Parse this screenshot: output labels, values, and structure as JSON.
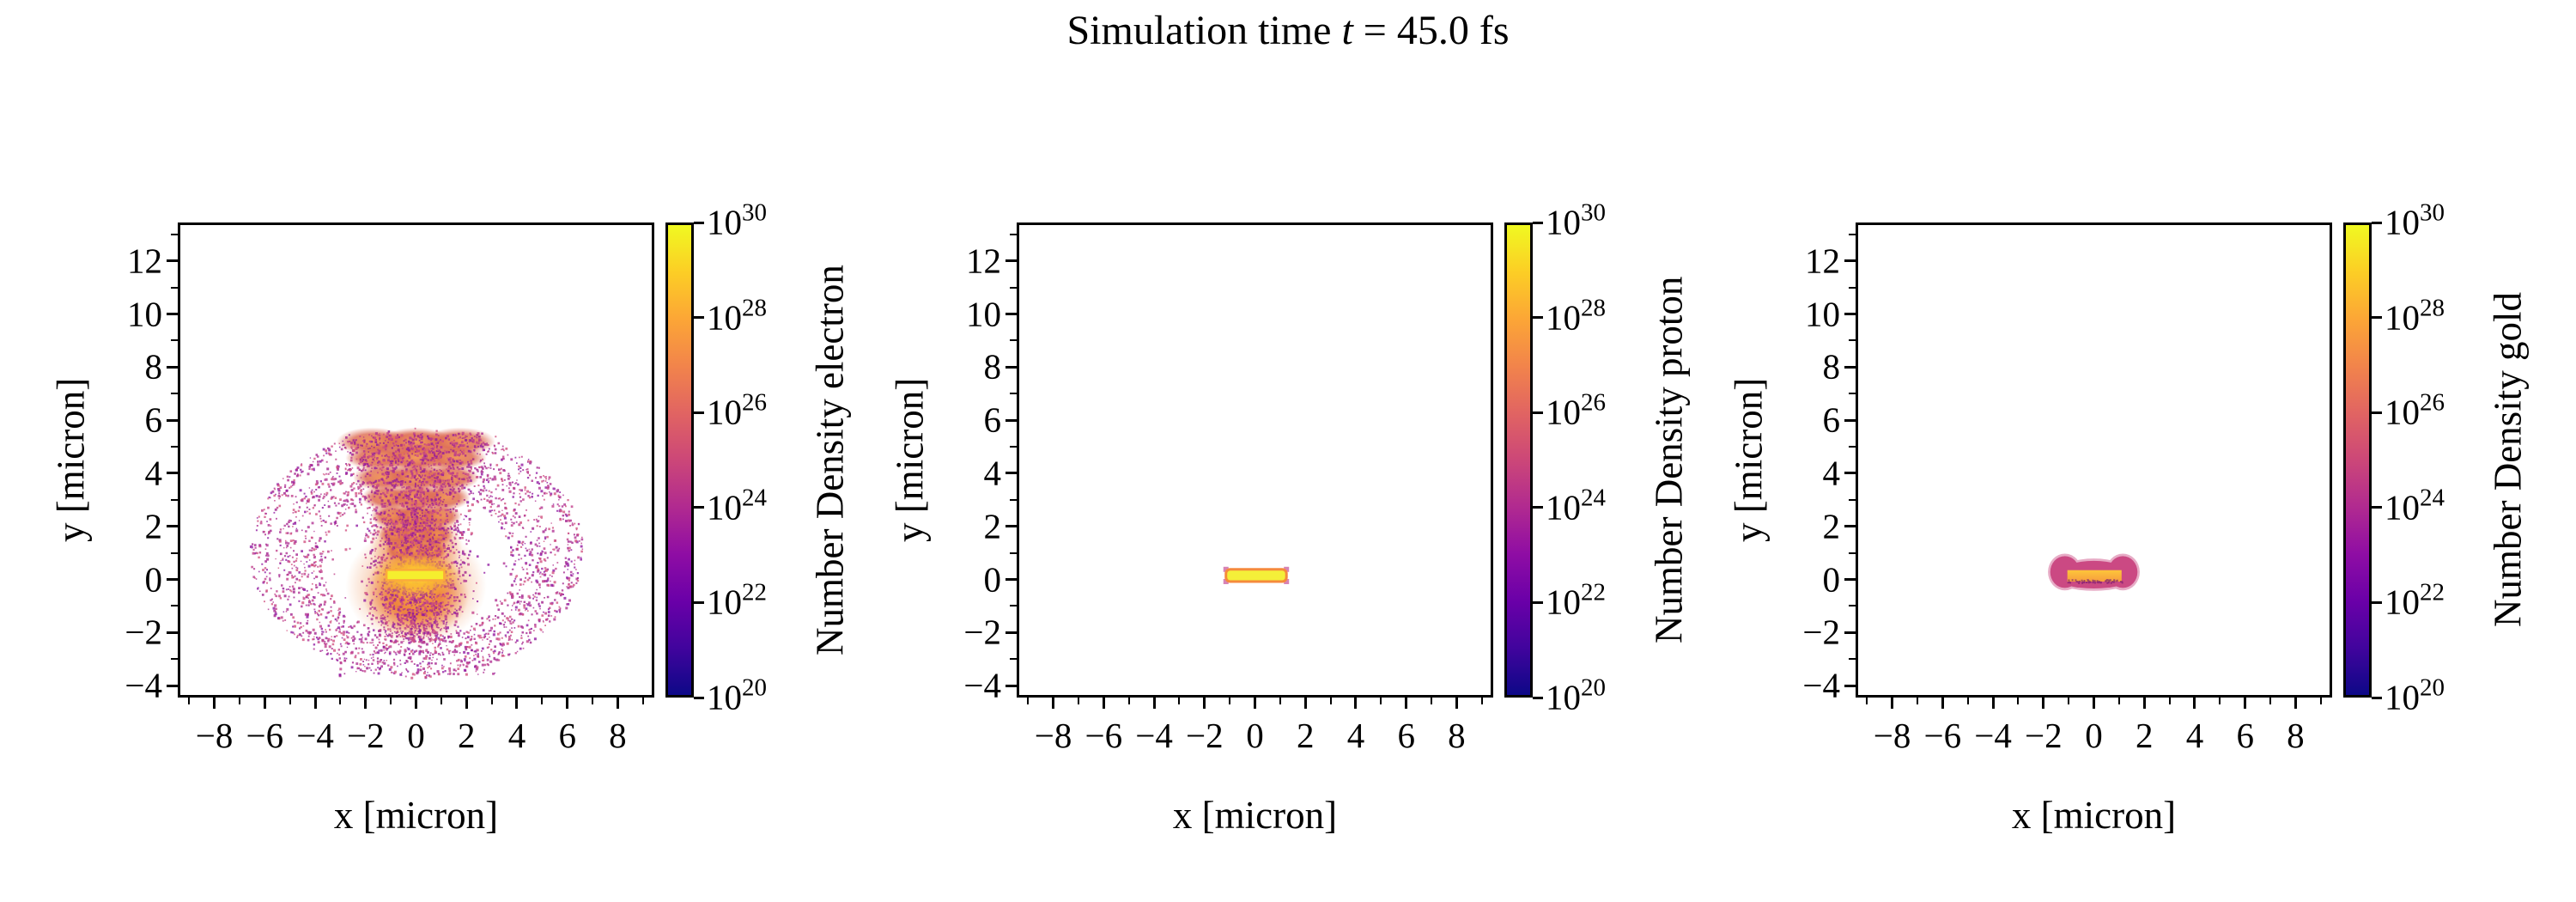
{
  "figure": {
    "title": {
      "prefix": "Simulation time ",
      "variable": "t",
      "suffix": " = 45.0 fs"
    },
    "background": "#ffffff"
  },
  "chart_data": [
    {
      "type": "heatmap",
      "species": "electron",
      "xlabel": "x [micron]",
      "ylabel": "y [micron]",
      "colorbar_label": "Number Density electron",
      "xlim": [
        -9.45,
        9.45
      ],
      "ylim": [
        -4.45,
        13.45
      ],
      "xticks": [
        -8,
        -6,
        -4,
        -2,
        0,
        2,
        4,
        6,
        8
      ],
      "xtick_labels": [
        "−8",
        "−6",
        "−4",
        "−2",
        "0",
        "2",
        "4",
        "6",
        "8"
      ],
      "yticks": [
        -4,
        -2,
        0,
        2,
        4,
        6,
        8,
        10,
        12
      ],
      "ytick_labels": [
        "−4",
        "−2",
        "0",
        "2",
        "4",
        "6",
        "8",
        "10",
        "12"
      ],
      "minor_tick_step": 1,
      "grid": false,
      "colorbar": {
        "scale": "log",
        "range_exponents": [
          20,
          30
        ],
        "tick_exponents": [
          30,
          28,
          26,
          24,
          22,
          20
        ],
        "tick_label_base": "10",
        "colormap": "plasma",
        "stops": [
          "#0d0887",
          "#41049d",
          "#6a00a8",
          "#8f0da4",
          "#b12a90",
          "#cc4778",
          "#e16462",
          "#f2844b",
          "#fca636",
          "#fcce25",
          "#f0f921"
        ]
      },
      "features": {
        "description": "exploded plasma plume: bright target bar at origin, orange expansion plume with stacked mushroom lobes up to y~5.4, magenta speckled halo shell out to radius ~6.3 micron",
        "glows": [
          {
            "cx": 0,
            "cy": -0.6,
            "rx": 2.1,
            "ry": 1.65,
            "opacity": 0.95
          },
          {
            "cx": 0,
            "cy": -0.25,
            "rx": 2.8,
            "ry": 2.25,
            "opacity": 0.5
          },
          {
            "cx": 0,
            "cy": 1.35,
            "rx": 1.85,
            "ry": 1.75,
            "opacity": 0.8
          }
        ],
        "caps": [
          {
            "y": 5.15,
            "rx": 3.15,
            "ry": 0.46
          },
          {
            "y": 4.55,
            "rx": 2.8,
            "ry": 0.43
          },
          {
            "y": 3.8,
            "rx": 2.5,
            "ry": 0.46
          },
          {
            "y": 3.05,
            "rx": 2.15,
            "ry": 0.43
          },
          {
            "y": 2.35,
            "rx": 1.8,
            "ry": 0.4
          },
          {
            "y": 1.65,
            "rx": 1.5,
            "ry": 0.38
          },
          {
            "y": 1.05,
            "rx": 1.2,
            "ry": 0.35
          }
        ],
        "core_glow": {
          "cx": 0,
          "cy": 0.15,
          "rx": 1.8,
          "ry": 0.85
        },
        "core_bar": {
          "x0": -1.17,
          "x1": 1.12,
          "y0": -0.03,
          "y1": 0.36,
          "fill": "#f5ee2e",
          "edge": "#fbab3a"
        },
        "speckle": {
          "seed": 20,
          "colors": [
            "#a21f8c",
            "#b02f92",
            "#8f17a0",
            "#c03d89",
            "#d14f7f"
          ],
          "opacity": 0.78,
          "column": {
            "count": 2300,
            "y0": -2.35,
            "y1": 5.55
          },
          "rings": [
            {
              "cx": 0,
              "cy": 1.05,
              "rx": 6.35,
              "ry": 4.55,
              "band": [
                0.93,
                1.04
              ],
              "count": 950
            },
            {
              "cx": 0,
              "cy": 0.9,
              "rx": 5.5,
              "ry": 4.05,
              "band": [
                0.86,
                1.02
              ],
              "count": 850
            },
            {
              "cx": 0,
              "cy": 0.7,
              "rx": 4.45,
              "ry": 3.35,
              "band": [
                0.84,
                1.05
              ],
              "count": 750
            }
          ],
          "interior": {
            "count": 420,
            "cx": 0,
            "cy": 1.0,
            "rx": 5.9,
            "ry": 4.3
          },
          "stragglers": {
            "count": 70,
            "y0": -3.6,
            "y1": -2.6,
            "halfw": 3.2
          }
        }
      }
    },
    {
      "type": "heatmap",
      "species": "proton",
      "xlabel": "x [micron]",
      "ylabel": "y [micron]",
      "colorbar_label": "Number Density proton",
      "xlim": [
        -9.45,
        9.45
      ],
      "ylim": [
        -4.45,
        13.45
      ],
      "xticks": [
        -8,
        -6,
        -4,
        -2,
        0,
        2,
        4,
        6,
        8
      ],
      "xtick_labels": [
        "−8",
        "−6",
        "−4",
        "−2",
        "0",
        "2",
        "4",
        "6",
        "8"
      ],
      "yticks": [
        -4,
        -2,
        0,
        2,
        4,
        6,
        8,
        10,
        12
      ],
      "ytick_labels": [
        "−4",
        "−2",
        "0",
        "2",
        "4",
        "6",
        "8",
        "10",
        "12"
      ],
      "minor_tick_step": 1,
      "grid": false,
      "colorbar": {
        "scale": "log",
        "range_exponents": [
          20,
          30
        ],
        "tick_exponents": [
          30,
          28,
          26,
          24,
          22,
          20
        ],
        "tick_label_base": "10",
        "colormap": "plasma",
        "stops": [
          "#0d0887",
          "#41049d",
          "#6a00a8",
          "#8f0da4",
          "#b12a90",
          "#cc4778",
          "#e16462",
          "#f2844b",
          "#fca636",
          "#fcce25",
          "#f0f921"
        ]
      },
      "features": {
        "description": "intact thin target: bright yellow bar at origin with orange rim",
        "bar": {
          "x0": -1.15,
          "x1": 1.25,
          "y0": -0.08,
          "y1": 0.38,
          "fill": "#f4ef39",
          "edge": "#f58a3c",
          "corner_color": "#c2418e"
        }
      }
    },
    {
      "type": "heatmap",
      "species": "gold",
      "xlabel": "x [micron]",
      "ylabel": "y [micron]",
      "colorbar_label": "Number Density gold",
      "xlim": [
        -9.45,
        9.45
      ],
      "ylim": [
        -4.45,
        13.45
      ],
      "xticks": [
        -8,
        -6,
        -4,
        -2,
        0,
        2,
        4,
        6,
        8
      ],
      "xtick_labels": [
        "−8",
        "−6",
        "−4",
        "−2",
        "0",
        "2",
        "4",
        "6",
        "8"
      ],
      "yticks": [
        -4,
        -2,
        0,
        2,
        4,
        6,
        8,
        10,
        12
      ],
      "ytick_labels": [
        "−4",
        "−2",
        "0",
        "2",
        "4",
        "6",
        "8",
        "10",
        "12"
      ],
      "minor_tick_step": 1,
      "grid": false,
      "colorbar": {
        "scale": "log",
        "range_exponents": [
          20,
          30
        ],
        "tick_exponents": [
          30,
          28,
          26,
          24,
          22,
          20
        ],
        "tick_label_base": "10",
        "colormap": "plasma",
        "stops": [
          "#0d0887",
          "#41049d",
          "#6a00a8",
          "#8f0da4",
          "#b12a90",
          "#cc4778",
          "#e16462",
          "#f2844b",
          "#fca636",
          "#fcce25",
          "#f0f921"
        ]
      },
      "features": {
        "description": "slightly expanded target: pink bone-shaped blob (x ~ -1.7..1.7, y ~ -0.4..0.95) with orange core bar",
        "halo_opacity": 0.45,
        "blob_fill": "#cb4983",
        "blob_shapes": [
          {
            "cx": 0,
            "cy": 0.26,
            "rx": 1.3,
            "ry": 0.44
          },
          {
            "cx": -1.15,
            "cy": 0.28,
            "rx": 0.58,
            "ry": 0.6
          },
          {
            "cx": 1.15,
            "cy": 0.28,
            "rx": 0.58,
            "ry": 0.6
          },
          {
            "cx": 0,
            "cy": 0.02,
            "rx": 1.42,
            "ry": 0.36
          }
        ],
        "bar": {
          "x0": -1.05,
          "x1": 1.1,
          "y0": -0.08,
          "y1": 0.35,
          "top_color": "#fdc53a",
          "bottom_color": "#f79d3e"
        },
        "bottom_speckle": {
          "count": 60,
          "y": -0.05,
          "color": "#7c1d6f"
        }
      }
    }
  ]
}
